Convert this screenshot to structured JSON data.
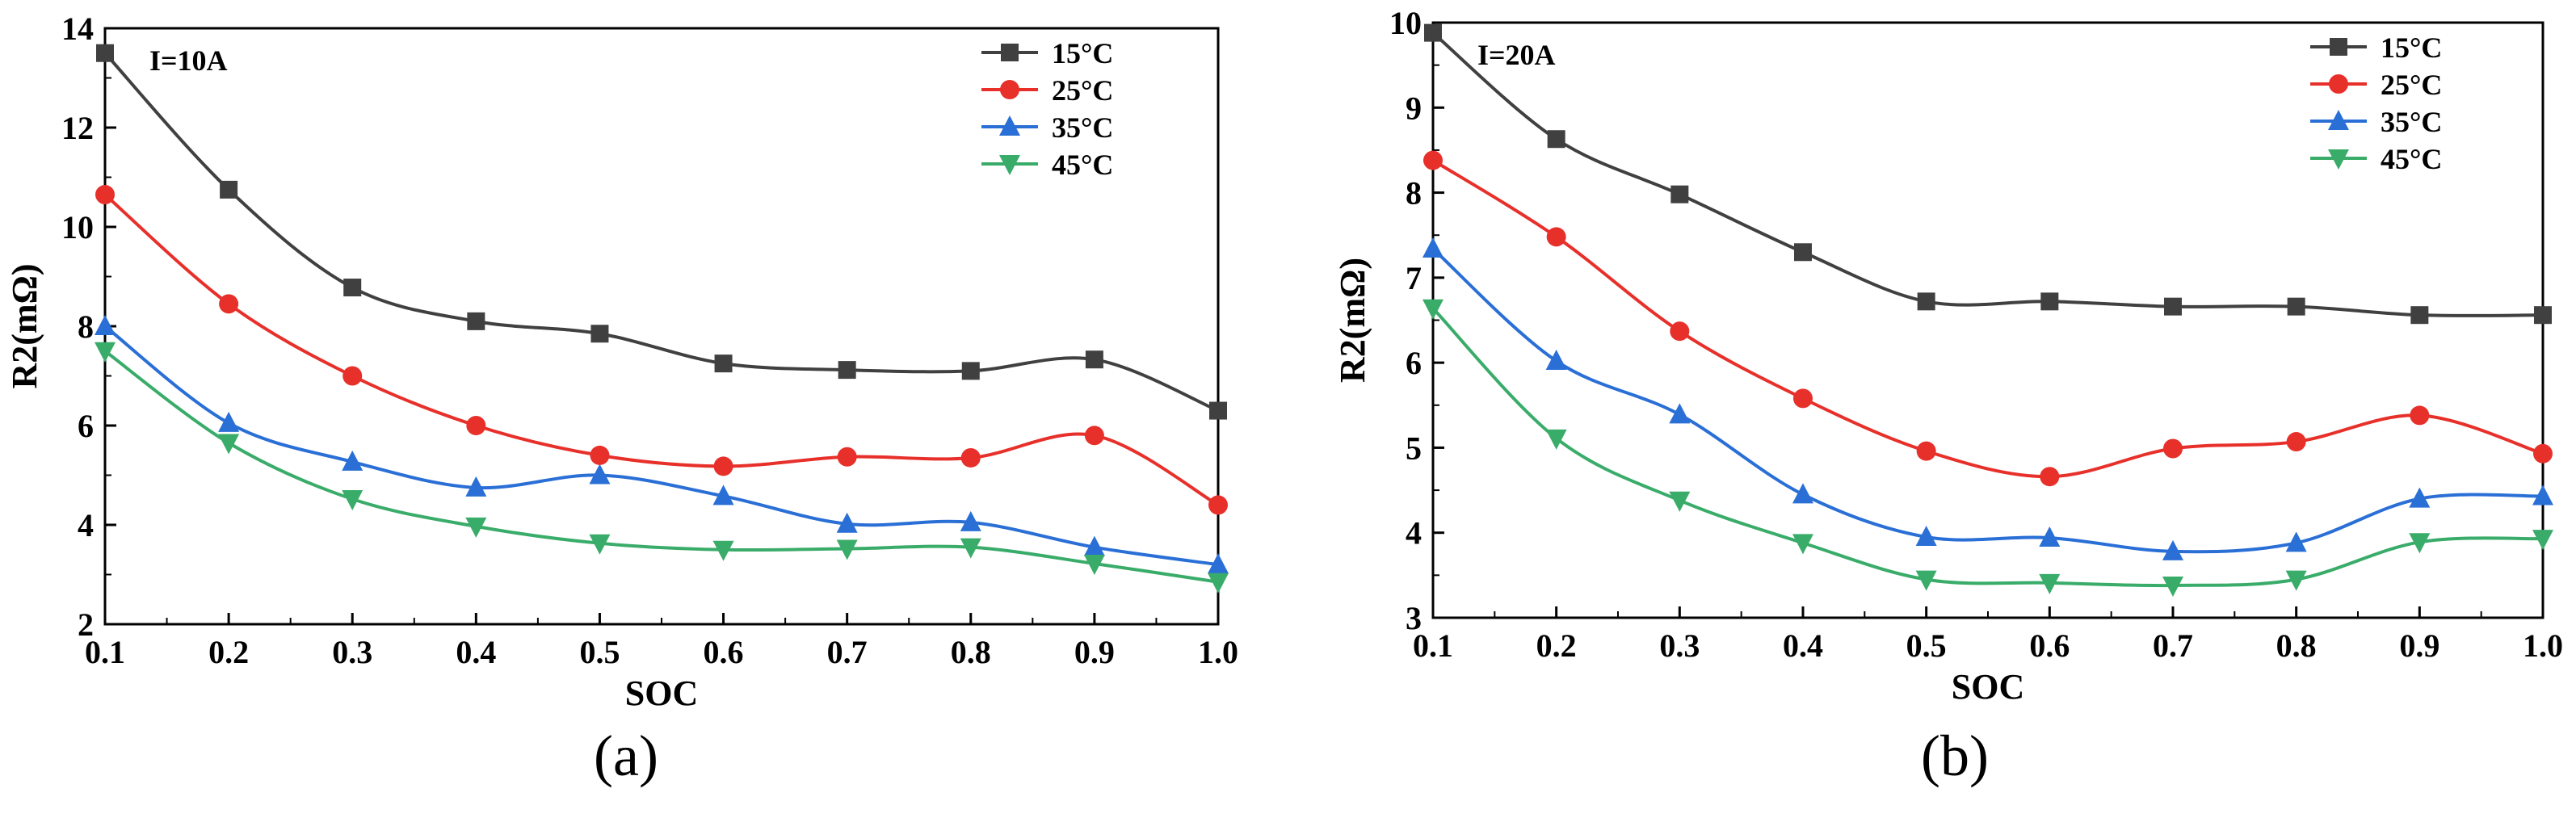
{
  "chart_data": [
    {
      "type": "line",
      "annotation": "I=10A",
      "panel_label": "(a)",
      "xlabel": "SOC",
      "ylabel": "R2(mΩ)",
      "xlim": [
        0.1,
        1.0
      ],
      "ylim": [
        2,
        14
      ],
      "x_ticks": [
        0.1,
        0.2,
        0.3,
        0.4,
        0.5,
        0.6,
        0.7,
        0.8,
        0.9,
        1.0
      ],
      "x_tick_labels": [
        "0.1",
        "0.2",
        "0.3",
        "0.4",
        "0.5",
        "0.6",
        "0.7",
        "0.8",
        "0.9",
        "1.0"
      ],
      "y_ticks": [
        2,
        4,
        6,
        8,
        10,
        12,
        14
      ],
      "y_tick_labels": [
        "2",
        "4",
        "6",
        "8",
        "10",
        "12",
        "14"
      ],
      "legend_position": "top-right",
      "x": [
        0.1,
        0.2,
        0.3,
        0.4,
        0.5,
        0.6,
        0.7,
        0.8,
        0.9,
        1.0
      ],
      "series": [
        {
          "name": "15°C",
          "color": "#404040",
          "marker": "square",
          "values": [
            13.5,
            10.75,
            8.78,
            8.1,
            7.85,
            7.25,
            7.12,
            7.1,
            7.33,
            6.3
          ]
        },
        {
          "name": "25°C",
          "color": "#e8302b",
          "marker": "circle",
          "values": [
            10.65,
            8.45,
            7.0,
            6.0,
            5.4,
            5.18,
            5.37,
            5.35,
            5.8,
            4.4
          ]
        },
        {
          "name": "35°C",
          "color": "#2a6fd6",
          "marker": "triangle-up",
          "values": [
            8.0,
            6.05,
            5.27,
            4.75,
            5.0,
            4.58,
            4.02,
            4.05,
            3.55,
            3.2
          ]
        },
        {
          "name": "45°C",
          "color": "#3aac6a",
          "marker": "triangle-down",
          "values": [
            7.5,
            5.65,
            4.52,
            3.97,
            3.63,
            3.5,
            3.52,
            3.55,
            3.22,
            2.85
          ]
        }
      ]
    },
    {
      "type": "line",
      "annotation": "I=20A",
      "panel_label": "(b)",
      "xlabel": "SOC",
      "ylabel": "R2(mΩ)",
      "xlim": [
        0.1,
        1.0
      ],
      "ylim": [
        3,
        10
      ],
      "x_ticks": [
        0.1,
        0.2,
        0.3,
        0.4,
        0.5,
        0.6,
        0.7,
        0.8,
        0.9,
        1.0
      ],
      "x_tick_labels": [
        "0.1",
        "0.2",
        "0.3",
        "0.4",
        "0.5",
        "0.6",
        "0.7",
        "0.8",
        "0.9",
        "1.0"
      ],
      "y_ticks": [
        3,
        4,
        5,
        6,
        7,
        8,
        9,
        10
      ],
      "y_tick_labels": [
        "3",
        "4",
        "5",
        "6",
        "7",
        "8",
        "9",
        "10"
      ],
      "legend_position": "top-right",
      "x": [
        0.1,
        0.2,
        0.3,
        0.4,
        0.5,
        0.6,
        0.7,
        0.8,
        0.9,
        1.0
      ],
      "series": [
        {
          "name": "15°C",
          "color": "#404040",
          "marker": "square",
          "values": [
            9.88,
            8.63,
            7.98,
            7.3,
            6.72,
            6.72,
            6.66,
            6.66,
            6.56,
            6.56
          ]
        },
        {
          "name": "25°C",
          "color": "#e8302b",
          "marker": "circle",
          "values": [
            8.38,
            7.48,
            6.37,
            5.58,
            4.96,
            4.66,
            4.99,
            5.07,
            5.38,
            4.93
          ]
        },
        {
          "name": "35°C",
          "color": "#2a6fd6",
          "marker": "triangle-up",
          "values": [
            7.34,
            6.02,
            5.39,
            4.45,
            3.95,
            3.94,
            3.78,
            3.88,
            4.4,
            4.43
          ]
        },
        {
          "name": "45°C",
          "color": "#3aac6a",
          "marker": "triangle-down",
          "values": [
            6.64,
            5.11,
            4.38,
            3.88,
            3.45,
            3.41,
            3.38,
            3.45,
            3.89,
            3.93
          ]
        }
      ]
    }
  ]
}
